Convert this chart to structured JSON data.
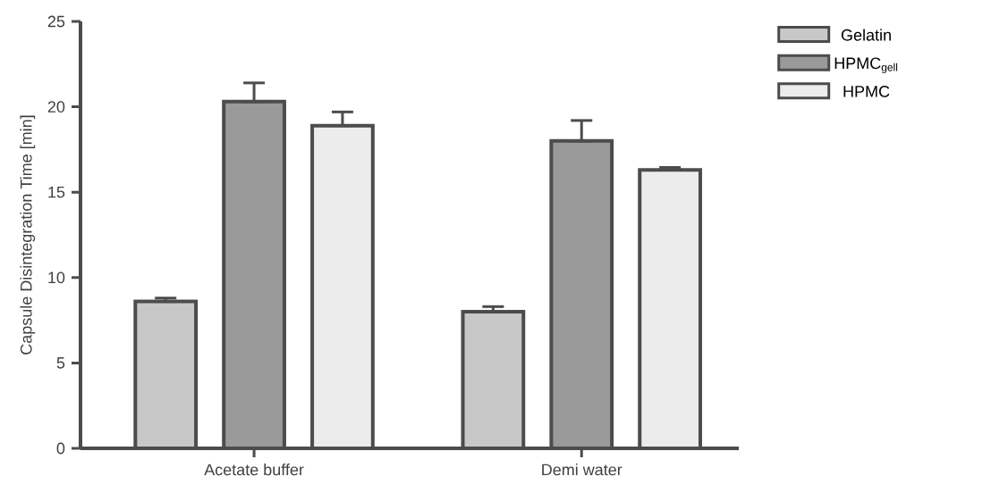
{
  "chart_data": {
    "type": "bar",
    "ylabel": "Capsule Disintegration Time [min]",
    "categories": [
      "Acetate buffer",
      "Demi water"
    ],
    "series": [
      {
        "name": "Gelatin",
        "color": "#c8c8c8",
        "values": [
          8.6,
          8.0
        ],
        "errors": [
          [
            8.6,
            8.8
          ],
          [
            8.0,
            8.3
          ]
        ]
      },
      {
        "name": "HPMC$_{gell}$",
        "color": "#9a9a9a",
        "values": [
          20.3,
          18.0
        ],
        "errors": [
          [
            20.3,
            21.4
          ],
          [
            18.0,
            19.2
          ]
        ]
      },
      {
        "name": "HPMC",
        "color": "#ececec",
        "values": [
          18.9,
          16.3
        ],
        "errors": [
          [
            18.9,
            19.7
          ],
          [
            16.3,
            16.45
          ]
        ]
      }
    ],
    "ylim": [
      0,
      25
    ],
    "yticks": [
      0,
      5,
      10,
      15,
      20,
      25
    ],
    "legend": "top right"
  }
}
